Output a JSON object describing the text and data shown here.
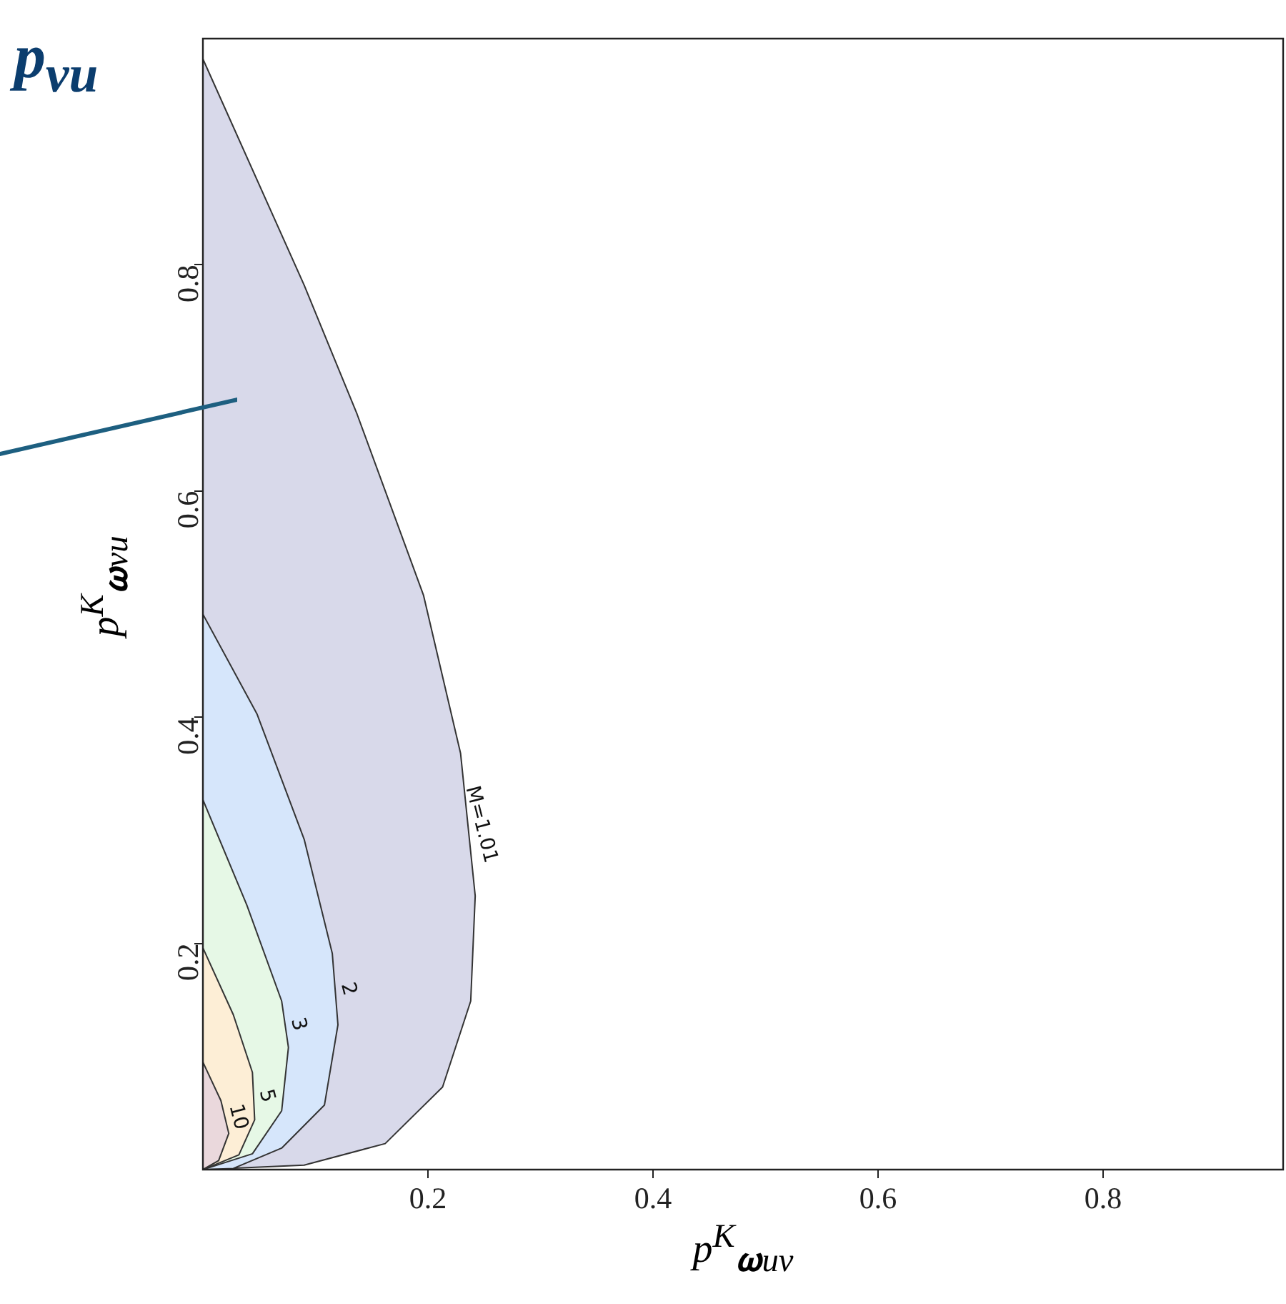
{
  "chart_data": {
    "type": "area",
    "xlabel": "p$^{K}$$_{𝛚uv}$",
    "ylabel": "p$^{K}$$_{𝛚vu}$",
    "annotations": [
      "p$_{vu}$"
    ],
    "xlim": [
      0,
      0.96
    ],
    "ylim": [
      0,
      1
    ],
    "xticks": [
      0.2,
      0.4,
      0.6,
      0.8
    ],
    "yticks": [
      0.2,
      0.4,
      0.6,
      0.8
    ],
    "grid": false,
    "legend": false,
    "series": [
      {
        "name": "M=1.01",
        "color": "#d8d9ea",
        "x": [
          0,
          0.09,
          0.137,
          0.196,
          0.229,
          0.242,
          0.238,
          0.213,
          0.162,
          0.09,
          0
        ],
        "values": [
          0.982,
          0.782,
          0.668,
          0.508,
          0.368,
          0.242,
          0.149,
          0.073,
          0.023,
          0.004,
          0
        ]
      },
      {
        "name": "2",
        "color": "#d6e6fb",
        "x": [
          0,
          0.048,
          0.09,
          0.115,
          0.12,
          0.108,
          0.07,
          0.027,
          0
        ],
        "values": [
          0.491,
          0.403,
          0.292,
          0.191,
          0.128,
          0.057,
          0.019,
          0.001,
          0
        ]
      },
      {
        "name": "3",
        "color": "#e6f8e6",
        "x": [
          0,
          0.039,
          0.07,
          0.076,
          0.07,
          0.044,
          0
        ],
        "values": [
          0.327,
          0.234,
          0.149,
          0.108,
          0.052,
          0.014,
          0
        ]
      },
      {
        "name": "5",
        "color": "#fdeed6",
        "x": [
          0,
          0.027,
          0.044,
          0.046,
          0.032,
          0
        ],
        "values": [
          0.196,
          0.137,
          0.086,
          0.044,
          0.013,
          0
        ]
      },
      {
        "name": "10",
        "color": "#ead8dc",
        "x": [
          0,
          0.016,
          0.023,
          0.014,
          0
        ],
        "values": [
          0.095,
          0.061,
          0.032,
          0.008,
          0
        ]
      }
    ]
  }
}
